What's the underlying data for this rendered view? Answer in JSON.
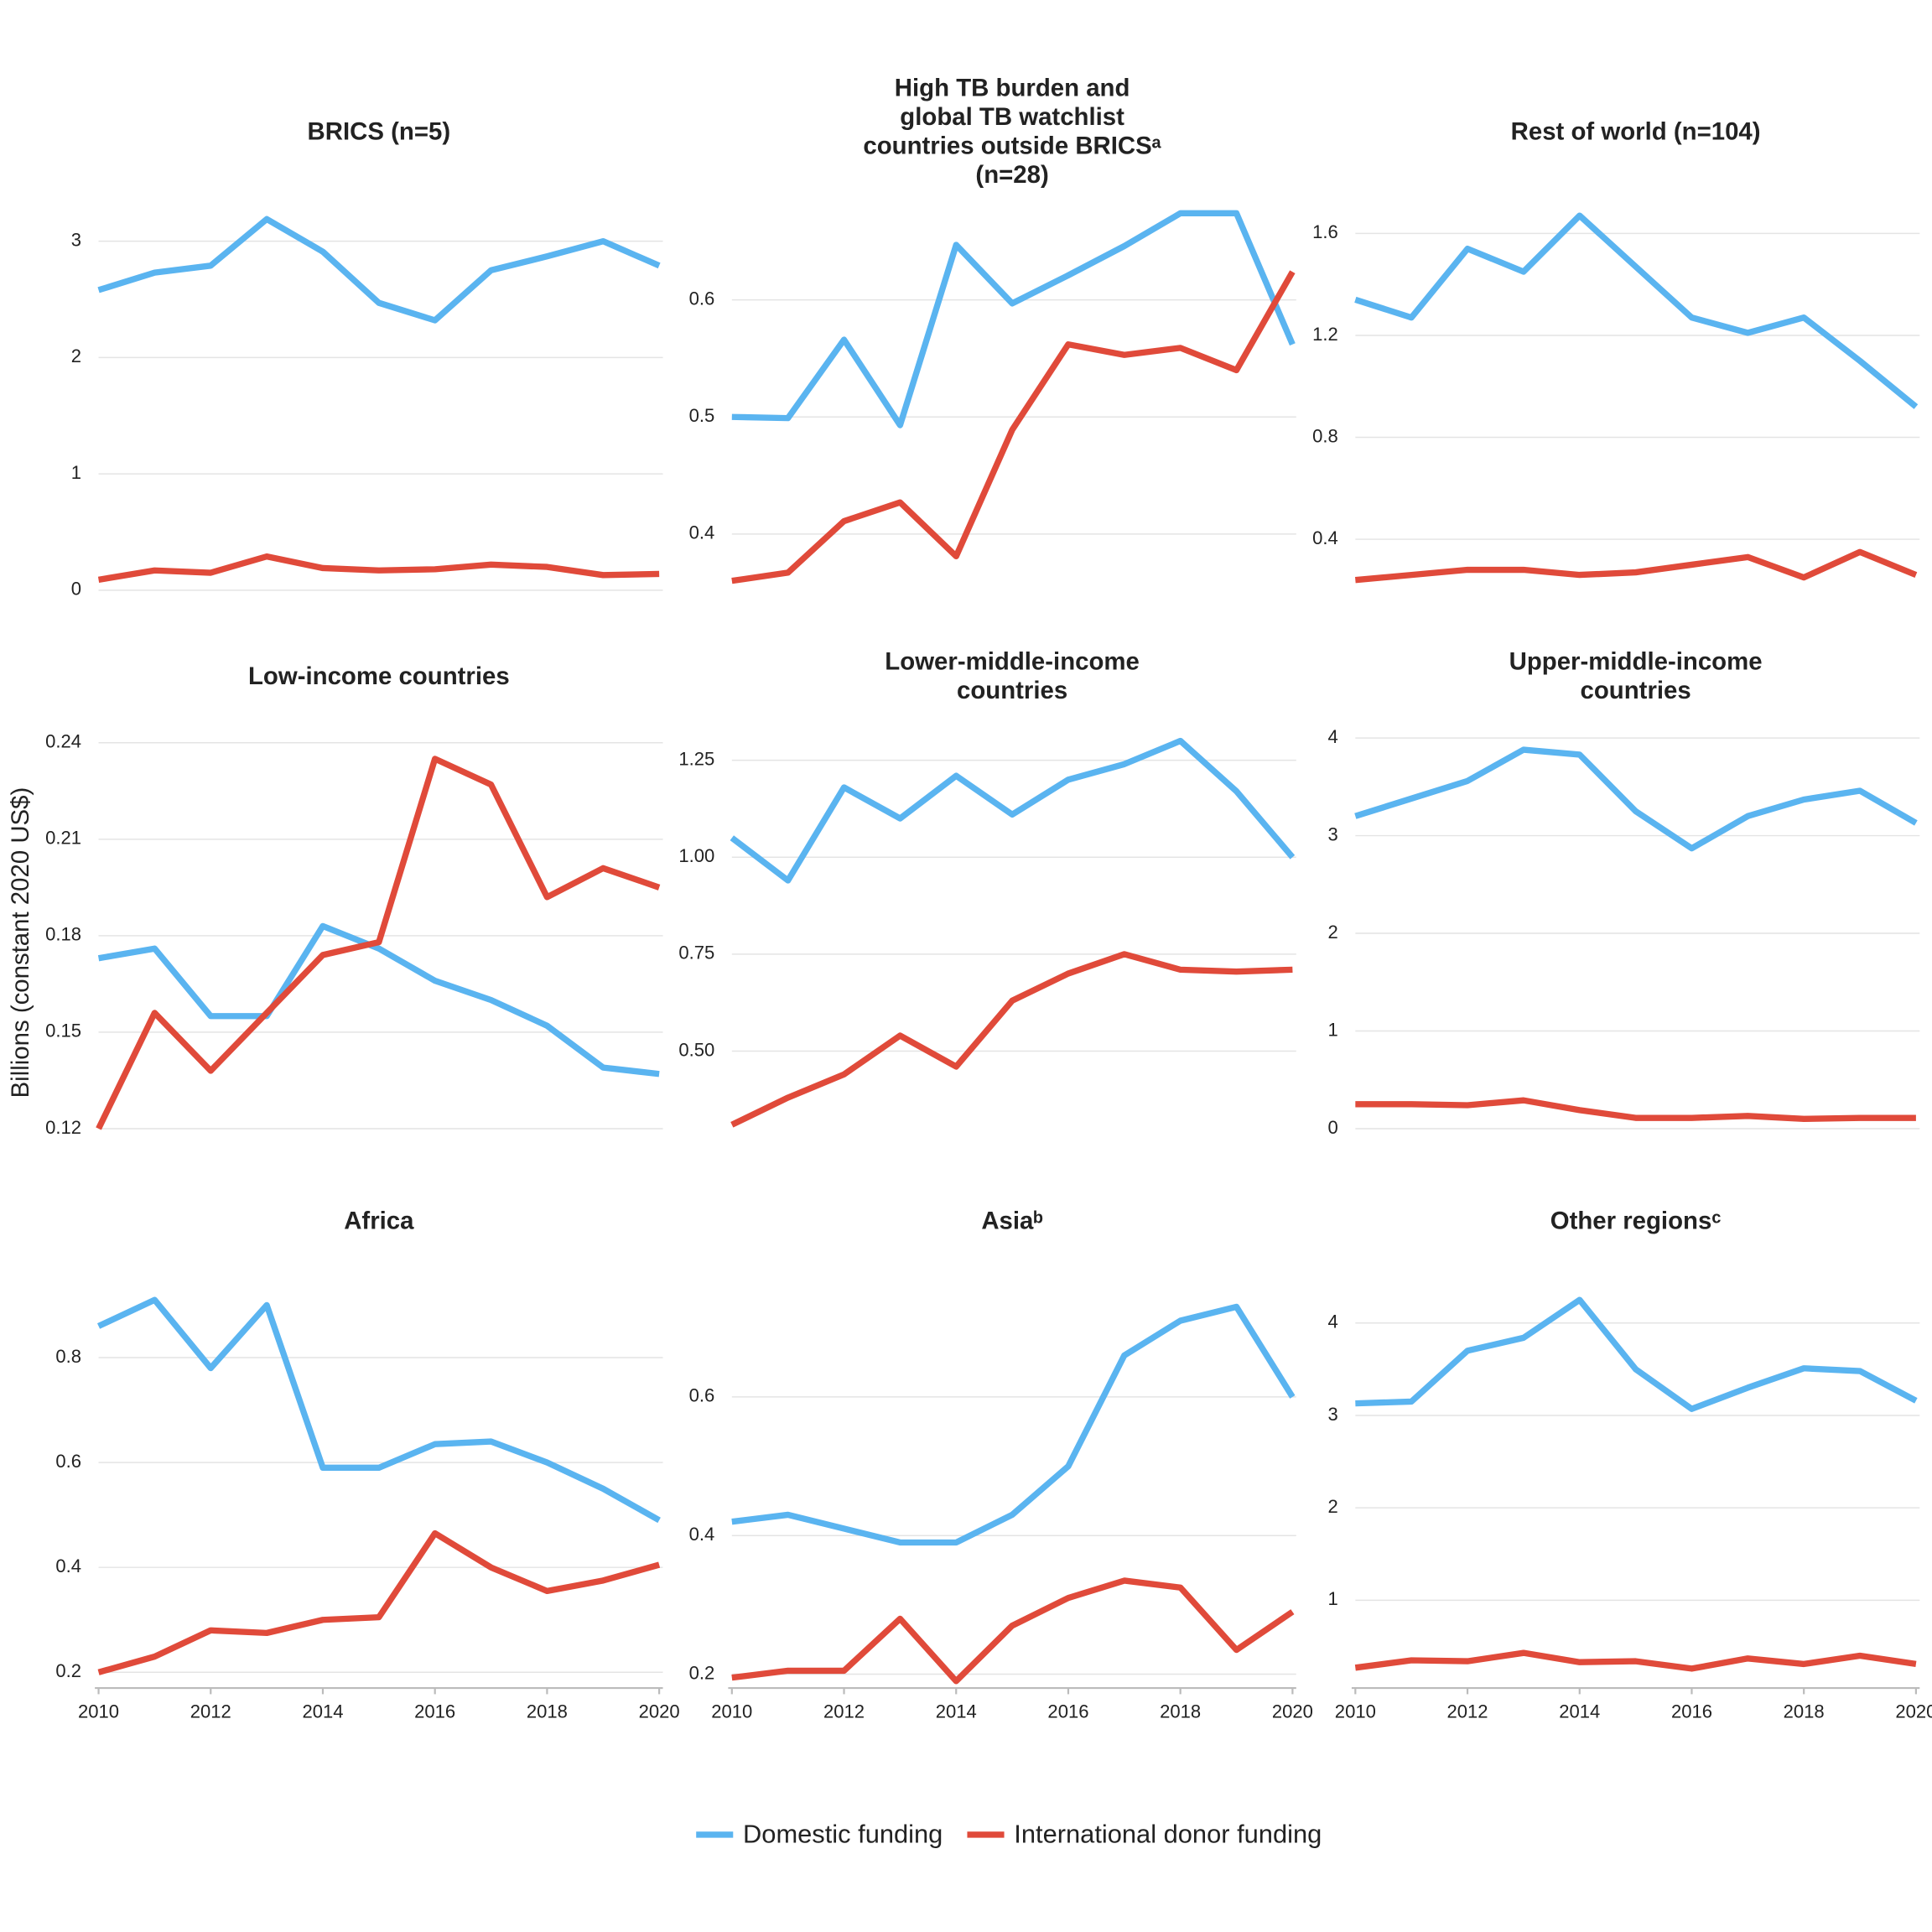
{
  "chart_data": [
    {
      "type": "line",
      "title": [
        "BRICS (n=5)"
      ],
      "x": [
        2010,
        2011,
        2012,
        2013,
        2014,
        2015,
        2016,
        2017,
        2018,
        2019,
        2020
      ],
      "xlim": [
        2010,
        2020
      ],
      "ylim": [
        0,
        3.22
      ],
      "yticks": [
        0,
        1,
        2,
        3
      ],
      "grid": true,
      "series": [
        {
          "name": "Domestic funding",
          "color": "#5ab4f0",
          "values": [
            2.58,
            2.73,
            2.79,
            3.19,
            2.91,
            2.47,
            2.32,
            2.75,
            2.87,
            3.0,
            2.79
          ]
        },
        {
          "name": "International donor funding",
          "color": "#e04a3a",
          "values": [
            0.09,
            0.17,
            0.15,
            0.29,
            0.19,
            0.17,
            0.18,
            0.22,
            0.2,
            0.13,
            0.14
          ]
        }
      ]
    },
    {
      "type": "line",
      "title": [
        "High TB burden and",
        "global TB watchlist",
        "countries outside BRICSᵃ",
        "(n=28)"
      ],
      "x": [
        2010,
        2011,
        2012,
        2013,
        2014,
        2015,
        2016,
        2017,
        2018,
        2019,
        2020
      ],
      "xlim": [
        2010,
        2020
      ],
      "ylim": [
        0.352,
        0.672
      ],
      "yticks": [
        0.4,
        0.5,
        0.6
      ],
      "grid": true,
      "series": [
        {
          "name": "Domestic funding",
          "color": "#5ab4f0",
          "values": [
            0.5,
            0.499,
            0.566,
            0.493,
            0.647,
            0.597,
            0.621,
            0.646,
            0.674,
            0.674,
            0.562
          ]
        },
        {
          "name": "International donor funding",
          "color": "#e04a3a",
          "values": [
            0.36,
            0.367,
            0.411,
            0.427,
            0.381,
            0.489,
            0.562,
            0.553,
            0.559,
            0.54,
            0.624
          ]
        }
      ]
    },
    {
      "type": "line",
      "title": [
        "Rest of world (n=104)"
      ],
      "x": [
        2010,
        2011,
        2012,
        2013,
        2014,
        2015,
        2016,
        2017,
        2018,
        2019,
        2020
      ],
      "xlim": [
        2010,
        2020
      ],
      "ylim": [
        0.2,
        1.67
      ],
      "yticks": [
        0.4,
        0.8,
        1.2,
        1.6
      ],
      "grid": true,
      "series": [
        {
          "name": "Domestic funding",
          "color": "#5ab4f0",
          "values": [
            1.34,
            1.27,
            1.54,
            1.45,
            1.67,
            1.47,
            1.27,
            1.21,
            1.27,
            1.1,
            0.92
          ]
        },
        {
          "name": "International donor funding",
          "color": "#e04a3a",
          "values": [
            0.24,
            0.26,
            0.28,
            0.28,
            0.26,
            0.27,
            0.3,
            0.33,
            0.25,
            0.35,
            0.26
          ]
        }
      ]
    },
    {
      "type": "line",
      "title": [
        "Low-income countries"
      ],
      "ylabel": "Billions (constant 2020 US$)",
      "x": [
        2010,
        2011,
        2012,
        2013,
        2014,
        2015,
        2016,
        2017,
        2018,
        2019,
        2020
      ],
      "xlim": [
        2010,
        2020
      ],
      "ylim": [
        0.12,
        0.243
      ],
      "yticks": [
        0.12,
        0.15,
        0.18,
        0.21,
        0.24
      ],
      "grid": true,
      "series": [
        {
          "name": "Domestic funding",
          "color": "#5ab4f0",
          "values": [
            0.173,
            0.176,
            0.155,
            0.155,
            0.183,
            0.176,
            0.166,
            0.16,
            0.152,
            0.139,
            0.137
          ]
        },
        {
          "name": "International donor funding",
          "color": "#e04a3a",
          "values": [
            0.12,
            0.156,
            0.138,
            0.156,
            0.174,
            0.178,
            0.235,
            0.227,
            0.192,
            0.201,
            0.195
          ]
        }
      ]
    },
    {
      "type": "line",
      "title": [
        "Lower-middle-income",
        "countries"
      ],
      "x": [
        2010,
        2011,
        2012,
        2013,
        2014,
        2015,
        2016,
        2017,
        2018,
        2019,
        2020
      ],
      "xlim": [
        2010,
        2020
      ],
      "ylim": [
        0.3,
        1.32
      ],
      "yticks": [
        {
          "value": 0.5,
          "label": "0.50"
        },
        0.75,
        {
          "value": 1,
          "label": "1.00"
        },
        1.25
      ],
      "grid": true,
      "series": [
        {
          "name": "Domestic funding",
          "color": "#5ab4f0",
          "values": [
            1.05,
            0.94,
            1.18,
            1.1,
            1.21,
            1.11,
            1.2,
            1.24,
            1.3,
            1.17,
            1.0
          ]
        },
        {
          "name": "International donor funding",
          "color": "#e04a3a",
          "values": [
            0.31,
            0.38,
            0.44,
            0.54,
            0.46,
            0.63,
            0.7,
            0.75,
            0.71,
            0.705,
            0.71
          ]
        }
      ]
    },
    {
      "type": "line",
      "title": [
        "Upper-middle-income",
        "countries"
      ],
      "x": [
        2010,
        2011,
        2012,
        2013,
        2014,
        2015,
        2016,
        2017,
        2018,
        2019,
        2020
      ],
      "xlim": [
        2010,
        2020
      ],
      "ylim": [
        0,
        4.05
      ],
      "yticks": [
        0,
        1,
        2,
        3,
        4
      ],
      "grid": true,
      "series": [
        {
          "name": "Domestic funding",
          "color": "#5ab4f0",
          "values": [
            3.2,
            3.38,
            3.56,
            3.88,
            3.83,
            3.25,
            2.87,
            3.2,
            3.37,
            3.46,
            3.13
          ]
        },
        {
          "name": "International donor funding",
          "color": "#e04a3a",
          "values": [
            0.25,
            0.25,
            0.24,
            0.29,
            0.19,
            0.11,
            0.11,
            0.13,
            0.1,
            0.11,
            0.11
          ]
        }
      ]
    },
    {
      "type": "line",
      "title": [
        "Africa"
      ],
      "x": [
        2010,
        2011,
        2012,
        2013,
        2014,
        2015,
        2016,
        2017,
        2018,
        2019,
        2020
      ],
      "xlim": [
        2010,
        2020
      ],
      "xticks": [
        2010,
        2012,
        2014,
        2016,
        2018,
        2020
      ],
      "ylim": [
        0.17,
        0.91
      ],
      "yticks": [
        0.2,
        0.4,
        0.6,
        0.8
      ],
      "grid": true,
      "series": [
        {
          "name": "Domestic funding",
          "color": "#5ab4f0",
          "values": [
            0.86,
            0.91,
            0.78,
            0.9,
            0.59,
            0.59,
            0.635,
            0.64,
            0.6,
            0.55,
            0.49
          ]
        },
        {
          "name": "International donor funding",
          "color": "#e04a3a",
          "values": [
            0.2,
            0.23,
            0.28,
            0.275,
            0.3,
            0.305,
            0.465,
            0.4,
            0.355,
            0.375,
            0.405
          ]
        }
      ]
    },
    {
      "type": "line",
      "title": [
        "Asiaᵇ"
      ],
      "x": [
        2010,
        2011,
        2012,
        2013,
        2014,
        2015,
        2016,
        2017,
        2018,
        2019,
        2020
      ],
      "xlim": [
        2010,
        2020
      ],
      "xticks": [
        2010,
        2012,
        2014,
        2016,
        2018,
        2020
      ],
      "ylim": [
        0.18,
        0.74
      ],
      "yticks": [
        0.2,
        0.4,
        0.6
      ],
      "grid": true,
      "series": [
        {
          "name": "Domestic funding",
          "color": "#5ab4f0",
          "values": [
            0.42,
            0.43,
            0.41,
            0.39,
            0.39,
            0.43,
            0.5,
            0.66,
            0.71,
            0.73,
            0.6
          ]
        },
        {
          "name": "International donor funding",
          "color": "#e04a3a",
          "values": [
            0.195,
            0.205,
            0.205,
            0.28,
            0.19,
            0.27,
            0.31,
            0.335,
            0.325,
            0.235,
            0.29
          ]
        }
      ]
    },
    {
      "type": "line",
      "title": [
        "Other regionsᶜ"
      ],
      "x": [
        2010,
        2011,
        2012,
        2013,
        2014,
        2015,
        2016,
        2017,
        2018,
        2019,
        2020
      ],
      "xlim": [
        2010,
        2020
      ],
      "xticks": [
        2010,
        2012,
        2014,
        2016,
        2018,
        2020
      ],
      "ylim": [
        0.05,
        4.25
      ],
      "yticks": [
        1,
        2,
        3,
        4
      ],
      "grid": true,
      "series": [
        {
          "name": "Domestic funding",
          "color": "#5ab4f0",
          "values": [
            3.13,
            3.15,
            3.7,
            3.84,
            4.25,
            3.5,
            3.07,
            3.3,
            3.51,
            3.48,
            3.16
          ]
        },
        {
          "name": "International donor funding",
          "color": "#e04a3a",
          "values": [
            0.27,
            0.35,
            0.34,
            0.43,
            0.33,
            0.34,
            0.26,
            0.37,
            0.31,
            0.4,
            0.31
          ]
        }
      ]
    }
  ]
}
